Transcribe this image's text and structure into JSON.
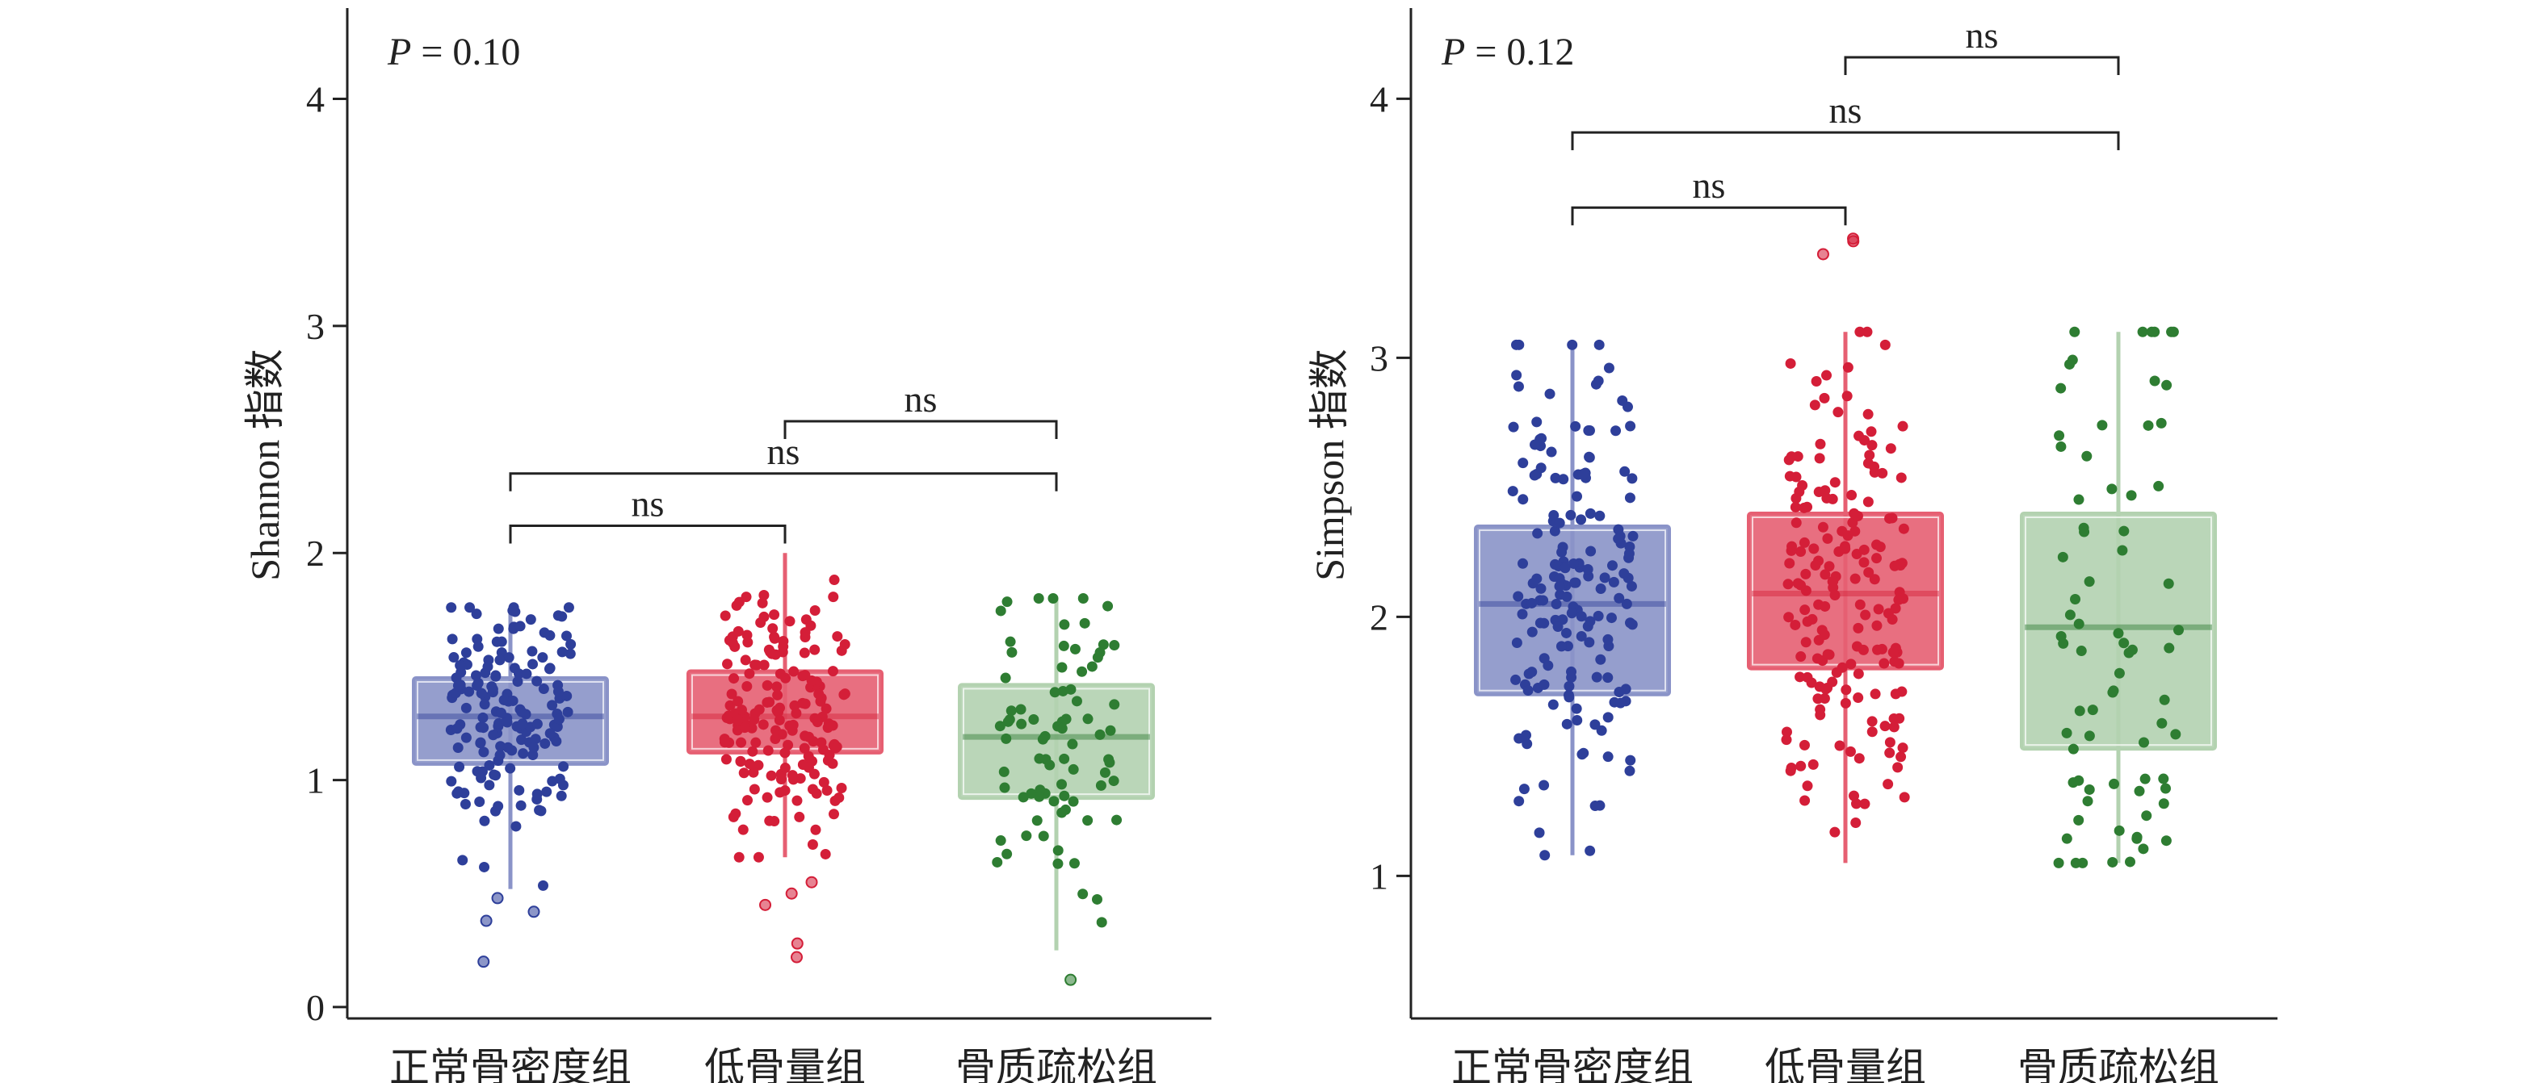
{
  "chart_data": [
    {
      "type": "box",
      "panel": "left",
      "annotation": {
        "italic": "P",
        "text": " = 0.10"
      },
      "ylabel": "Shannon 指数",
      "xlabel": "",
      "ylim": [
        -0.05,
        4.4
      ],
      "yticks": [
        "0",
        "1",
        "2",
        "3",
        "4"
      ],
      "grid": false,
      "categories": [
        "正常骨密度组",
        "低骨量组",
        "骨质疏松组"
      ],
      "colors": [
        "#2e3f9a",
        "#d41e38",
        "#2e7d32"
      ],
      "box_fills": [
        "#8a93c8",
        "#e65f72",
        "#b3d2b0"
      ],
      "boxes": [
        {
          "q1": 1.07,
          "median": 1.28,
          "q3": 1.45,
          "whisker_low": 0.52,
          "whisker_high": 1.76
        },
        {
          "q1": 1.12,
          "median": 1.28,
          "q3": 1.48,
          "whisker_low": 0.66,
          "whisker_high": 2.0
        },
        {
          "q1": 0.92,
          "median": 1.19,
          "q3": 1.42,
          "whisker_low": 0.25,
          "whisker_high": 1.8
        }
      ],
      "points_n": [
        160,
        180,
        80
      ],
      "outliers": [
        [
          0.42,
          0.48,
          0.38,
          0.2
        ],
        [
          0.55,
          0.5,
          0.45,
          0.28,
          0.22
        ],
        [
          0.12
        ]
      ],
      "comparisons": [
        {
          "from": 0,
          "to": 1,
          "y": 2.12,
          "label": "ns"
        },
        {
          "from": 0,
          "to": 2,
          "y": 2.35,
          "label": "ns"
        },
        {
          "from": 1,
          "to": 2,
          "y": 2.58,
          "label": "ns"
        }
      ]
    },
    {
      "type": "box",
      "panel": "right",
      "annotation": {
        "italic": "P",
        "text": " = 0.12"
      },
      "ylabel": "Simpson 指数",
      "xlabel": "",
      "ylim": [
        0.45,
        4.35
      ],
      "yticks": [
        "1",
        "2",
        "3",
        "4"
      ],
      "grid": false,
      "categories": [
        "正常骨密度组",
        "低骨量组",
        "骨质疏松组"
      ],
      "colors": [
        "#2e3f9a",
        "#d41e38",
        "#2e7d32"
      ],
      "box_fills": [
        "#8a93c8",
        "#e65f72",
        "#b3d2b0"
      ],
      "boxes": [
        {
          "q1": 1.7,
          "median": 2.05,
          "q3": 2.35,
          "whisker_low": 1.08,
          "whisker_high": 3.05
        },
        {
          "q1": 1.8,
          "median": 2.09,
          "q3": 2.4,
          "whisker_low": 1.05,
          "whisker_high": 3.1
        },
        {
          "q1": 1.49,
          "median": 1.96,
          "q3": 2.4,
          "whisker_low": 1.05,
          "whisker_high": 3.1
        }
      ],
      "points_n": [
        170,
        180,
        75
      ],
      "outliers": [
        [],
        [
          3.45,
          3.46,
          3.4
        ],
        []
      ],
      "comparisons": [
        {
          "from": 0,
          "to": 1,
          "y": 3.58,
          "label": "ns"
        },
        {
          "from": 0,
          "to": 2,
          "y": 3.87,
          "label": "ns"
        },
        {
          "from": 1,
          "to": 2,
          "y": 4.16,
          "label": "ns"
        }
      ]
    }
  ]
}
